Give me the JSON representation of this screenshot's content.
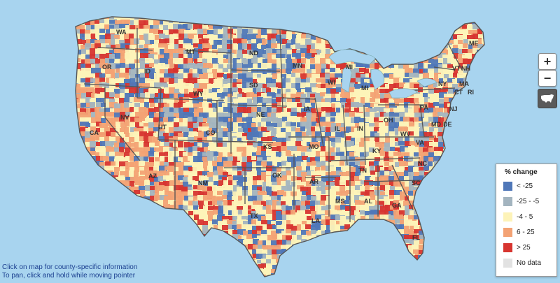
{
  "map": {
    "background_color": "#a8d4ef",
    "land_base_color": "#fdf3b8",
    "state_labels": [
      {
        "id": "WA",
        "text": "WA"
      },
      {
        "id": "OR",
        "text": "OR"
      },
      {
        "id": "CA",
        "text": "CA"
      },
      {
        "id": "ID",
        "text": "ID"
      },
      {
        "id": "NV",
        "text": "NV"
      },
      {
        "id": "MT",
        "text": "MT"
      },
      {
        "id": "WY",
        "text": "WY"
      },
      {
        "id": "UT",
        "text": "UT"
      },
      {
        "id": "AZ",
        "text": "AZ"
      },
      {
        "id": "CO",
        "text": "CO"
      },
      {
        "id": "NM",
        "text": "NM"
      },
      {
        "id": "ND",
        "text": "ND"
      },
      {
        "id": "SD",
        "text": "SD"
      },
      {
        "id": "NE",
        "text": "NE"
      },
      {
        "id": "KS",
        "text": "KS"
      },
      {
        "id": "OK",
        "text": "OK"
      },
      {
        "id": "TX",
        "text": "TX"
      },
      {
        "id": "MN",
        "text": "MN"
      },
      {
        "id": "IA",
        "text": "IA"
      },
      {
        "id": "MO",
        "text": "MO"
      },
      {
        "id": "AR",
        "text": "AR"
      },
      {
        "id": "LA",
        "text": "LA"
      },
      {
        "id": "WI",
        "text": "WI"
      },
      {
        "id": "IL",
        "text": "IL"
      },
      {
        "id": "MS",
        "text": "MS"
      },
      {
        "id": "MI",
        "text": "MI"
      },
      {
        "id": "MI2",
        "text": "MI"
      },
      {
        "id": "IN",
        "text": "IN"
      },
      {
        "id": "KY",
        "text": "KY"
      },
      {
        "id": "TN",
        "text": "TN"
      },
      {
        "id": "AL",
        "text": "AL"
      },
      {
        "id": "OH",
        "text": "OH"
      },
      {
        "id": "WV",
        "text": "WV"
      },
      {
        "id": "VA",
        "text": "VA"
      },
      {
        "id": "NC",
        "text": "NC"
      },
      {
        "id": "SC",
        "text": "SC"
      },
      {
        "id": "GA",
        "text": "GA"
      },
      {
        "id": "FL",
        "text": "FL"
      },
      {
        "id": "PA",
        "text": "PA"
      },
      {
        "id": "NY",
        "text": "NY"
      },
      {
        "id": "NJ",
        "text": "NJ"
      },
      {
        "id": "MD",
        "text": "MD"
      },
      {
        "id": "DE",
        "text": "DE"
      },
      {
        "id": "CT",
        "text": "CT"
      },
      {
        "id": "RI",
        "text": "RI"
      },
      {
        "id": "MA",
        "text": "MA"
      },
      {
        "id": "VT",
        "text": "VT"
      },
      {
        "id": "NH",
        "text": "NH"
      },
      {
        "id": "ME",
        "text": "ME"
      }
    ]
  },
  "controls": {
    "zoom_in_label": "+",
    "zoom_out_label": "−",
    "usa_icon": "usa-map-icon"
  },
  "legend": {
    "title": "% change",
    "items": [
      {
        "label": "< -25",
        "color": "#4f77b8"
      },
      {
        "label": "-25 - -5",
        "color": "#a3b4bf"
      },
      {
        "label": "-4 - 5",
        "color": "#fdf3b8"
      },
      {
        "label": "6 - 25",
        "color": "#f3a274"
      },
      {
        "label": "> 25",
        "color": "#d73530"
      },
      {
        "label": "No data",
        "color": "#e2e2e2"
      }
    ]
  },
  "instructions": {
    "line1": "Click on map for county-specific information",
    "line2": "To pan, click and hold while moving pointer"
  }
}
